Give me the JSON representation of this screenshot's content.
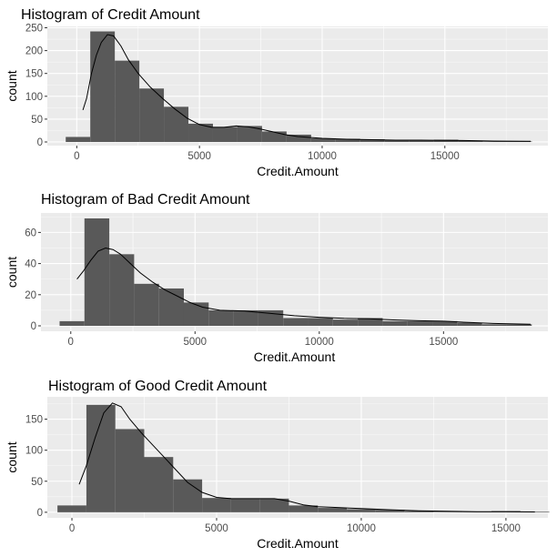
{
  "page": {
    "background": "#ffffff"
  },
  "style": {
    "panel_bg": "#ebebeb",
    "grid_major": "#ffffff",
    "grid_minor": "#f5f5f5",
    "bar_fill": "#595959",
    "density_line": "#000000",
    "tick_color": "#333333",
    "text_color": "#000000",
    "tick_label_color": "#4d4d4d"
  },
  "chart_data": [
    {
      "type": "bar",
      "title": "Histogram of Credit Amount",
      "xlabel": "Credit.Amount",
      "ylabel": "count",
      "xlim": [
        -1200,
        19200
      ],
      "ylim": [
        -8,
        253
      ],
      "x_ticks": [
        0,
        5000,
        10000,
        15000
      ],
      "x_tick_labels": [
        "0",
        "5000",
        "10000",
        "15000"
      ],
      "y_ticks": [
        0,
        50,
        100,
        150,
        200,
        250
      ],
      "y_tick_labels": [
        "0",
        "50",
        "100",
        "150",
        "200",
        "250"
      ],
      "grid": true,
      "bins": [
        {
          "x0": -450,
          "x1": 550,
          "count": 11
        },
        {
          "x0": 550,
          "x1": 1550,
          "count": 242
        },
        {
          "x0": 1550,
          "x1": 2550,
          "count": 178
        },
        {
          "x0": 2550,
          "x1": 3550,
          "count": 117
        },
        {
          "x0": 3550,
          "x1": 4550,
          "count": 77
        },
        {
          "x0": 4550,
          "x1": 5550,
          "count": 40
        },
        {
          "x0": 5550,
          "x1": 6550,
          "count": 33
        },
        {
          "x0": 6550,
          "x1": 7550,
          "count": 35
        },
        {
          "x0": 7550,
          "x1": 8550,
          "count": 23
        },
        {
          "x0": 8550,
          "x1": 9550,
          "count": 16
        },
        {
          "x0": 9550,
          "x1": 10550,
          "count": 8
        },
        {
          "x0": 10550,
          "x1": 11550,
          "count": 7
        },
        {
          "x0": 11550,
          "x1": 12550,
          "count": 6
        },
        {
          "x0": 12550,
          "x1": 13550,
          "count": 4
        },
        {
          "x0": 13550,
          "x1": 14550,
          "count": 4
        },
        {
          "x0": 14550,
          "x1": 15550,
          "count": 5
        },
        {
          "x0": 15550,
          "x1": 16550,
          "count": 3
        },
        {
          "x0": 16550,
          "x1": 17550,
          "count": 1
        },
        {
          "x0": 17550,
          "x1": 18550,
          "count": 1
        }
      ],
      "density_curve": [
        [
          250,
          70
        ],
        [
          400,
          95
        ],
        [
          600,
          150
        ],
        [
          800,
          190
        ],
        [
          1000,
          218
        ],
        [
          1250,
          235
        ],
        [
          1500,
          232
        ],
        [
          1800,
          210
        ],
        [
          2100,
          180
        ],
        [
          2500,
          150
        ],
        [
          3000,
          120
        ],
        [
          3500,
          95
        ],
        [
          4000,
          72
        ],
        [
          4500,
          52
        ],
        [
          5000,
          38
        ],
        [
          5500,
          32
        ],
        [
          6000,
          32
        ],
        [
          6500,
          35
        ],
        [
          7000,
          33
        ],
        [
          7500,
          28
        ],
        [
          8000,
          22
        ],
        [
          8500,
          16
        ],
        [
          9000,
          12
        ],
        [
          10000,
          8
        ],
        [
          11000,
          6
        ],
        [
          12000,
          5
        ],
        [
          13000,
          4
        ],
        [
          14000,
          4
        ],
        [
          15000,
          3.5
        ],
        [
          16000,
          3
        ],
        [
          17000,
          2
        ],
        [
          18500,
          1.5
        ]
      ]
    },
    {
      "type": "bar",
      "title": "Histogram of Bad Credit Amount",
      "xlabel": "Credit.Amount",
      "ylabel": "count",
      "xlim": [
        -1200,
        19200
      ],
      "ylim": [
        -3.5,
        72.5
      ],
      "x_ticks": [
        0,
        5000,
        10000,
        15000
      ],
      "x_tick_labels": [
        "0",
        "5000",
        "10000",
        "15000"
      ],
      "y_ticks": [
        0,
        20,
        40,
        60
      ],
      "y_tick_labels": [
        "0",
        "20",
        "40",
        "60"
      ],
      "grid": true,
      "bins": [
        {
          "x0": -450,
          "x1": 550,
          "count": 3
        },
        {
          "x0": 550,
          "x1": 1550,
          "count": 69
        },
        {
          "x0": 1550,
          "x1": 2550,
          "count": 46
        },
        {
          "x0": 2550,
          "x1": 3550,
          "count": 27
        },
        {
          "x0": 3550,
          "x1": 4550,
          "count": 24
        },
        {
          "x0": 4550,
          "x1": 5550,
          "count": 15
        },
        {
          "x0": 5550,
          "x1": 6550,
          "count": 10
        },
        {
          "x0": 6550,
          "x1": 7550,
          "count": 10
        },
        {
          "x0": 7550,
          "x1": 8550,
          "count": 10
        },
        {
          "x0": 8550,
          "x1": 9550,
          "count": 5
        },
        {
          "x0": 9550,
          "x1": 10550,
          "count": 5
        },
        {
          "x0": 10550,
          "x1": 11550,
          "count": 4
        },
        {
          "x0": 11550,
          "x1": 12550,
          "count": 5
        },
        {
          "x0": 12550,
          "x1": 13550,
          "count": 3
        },
        {
          "x0": 13550,
          "x1": 14550,
          "count": 3
        },
        {
          "x0": 14550,
          "x1": 15550,
          "count": 3
        },
        {
          "x0": 15550,
          "x1": 16550,
          "count": 2
        },
        {
          "x0": 16550,
          "x1": 17550,
          "count": 1
        },
        {
          "x0": 17550,
          "x1": 18550,
          "count": 1
        }
      ],
      "density_curve": [
        [
          250,
          30
        ],
        [
          500,
          35
        ],
        [
          800,
          42
        ],
        [
          1100,
          48
        ],
        [
          1400,
          50
        ],
        [
          1700,
          49
        ],
        [
          2000,
          46
        ],
        [
          2400,
          40
        ],
        [
          2800,
          34
        ],
        [
          3300,
          28
        ],
        [
          3800,
          23
        ],
        [
          4300,
          19
        ],
        [
          4800,
          15
        ],
        [
          5300,
          12
        ],
        [
          6000,
          10
        ],
        [
          7000,
          9.5
        ],
        [
          8000,
          8
        ],
        [
          9000,
          6.5
        ],
        [
          10000,
          5.5
        ],
        [
          11000,
          4.8
        ],
        [
          12000,
          4.5
        ],
        [
          13000,
          3.8
        ],
        [
          14000,
          3.3
        ],
        [
          15000,
          3
        ],
        [
          16000,
          2.2
        ],
        [
          17000,
          1.5
        ],
        [
          18500,
          1
        ]
      ]
    },
    {
      "type": "bar",
      "title": "Histogram of Good Credit Amount",
      "xlabel": "Credit.Amount",
      "ylabel": "count",
      "xlim": [
        -850,
        16450
      ],
      "ylim": [
        -9,
        186
      ],
      "x_ticks": [
        0,
        5000,
        10000,
        15000
      ],
      "x_tick_labels": [
        "0",
        "5000",
        "10000",
        "15000"
      ],
      "y_ticks": [
        0,
        50,
        100,
        150
      ],
      "y_tick_labels": [
        "0",
        "50",
        "100",
        "150"
      ],
      "grid": true,
      "bins": [
        {
          "x0": -500,
          "x1": 500,
          "count": 11
        },
        {
          "x0": 500,
          "x1": 1500,
          "count": 173
        },
        {
          "x0": 1500,
          "x1": 2500,
          "count": 134
        },
        {
          "x0": 2500,
          "x1": 3500,
          "count": 89
        },
        {
          "x0": 3500,
          "x1": 4500,
          "count": 53
        },
        {
          "x0": 4500,
          "x1": 5500,
          "count": 23
        },
        {
          "x0": 5500,
          "x1": 6500,
          "count": 22
        },
        {
          "x0": 6500,
          "x1": 7500,
          "count": 22
        },
        {
          "x0": 7500,
          "x1": 8500,
          "count": 11
        },
        {
          "x0": 8500,
          "x1": 9500,
          "count": 7
        },
        {
          "x0": 9500,
          "x1": 10500,
          "count": 5
        },
        {
          "x0": 10500,
          "x1": 11500,
          "count": 4
        },
        {
          "x0": 11500,
          "x1": 12500,
          "count": 2
        },
        {
          "x0": 12500,
          "x1": 13500,
          "count": 1
        },
        {
          "x0": 13500,
          "x1": 14500,
          "count": 1
        },
        {
          "x0": 14500,
          "x1": 15500,
          "count": 2
        },
        {
          "x0": 15500,
          "x1": 16500,
          "count": 1
        }
      ],
      "density_curve": [
        [
          250,
          45
        ],
        [
          500,
          75
        ],
        [
          800,
          120
        ],
        [
          1100,
          160
        ],
        [
          1400,
          176
        ],
        [
          1700,
          170
        ],
        [
          2000,
          150
        ],
        [
          2400,
          128
        ],
        [
          2800,
          108
        ],
        [
          3200,
          88
        ],
        [
          3600,
          68
        ],
        [
          4000,
          48
        ],
        [
          4500,
          32
        ],
        [
          5000,
          24
        ],
        [
          5500,
          22
        ],
        [
          6000,
          22
        ],
        [
          6500,
          22
        ],
        [
          7000,
          22
        ],
        [
          7500,
          18
        ],
        [
          8000,
          12
        ],
        [
          8500,
          9
        ],
        [
          9000,
          8
        ],
        [
          10000,
          6
        ],
        [
          11000,
          4
        ],
        [
          12000,
          2.5
        ],
        [
          13000,
          1.5
        ],
        [
          14000,
          1
        ],
        [
          15000,
          1
        ],
        [
          16000,
          0.5
        ]
      ]
    }
  ]
}
